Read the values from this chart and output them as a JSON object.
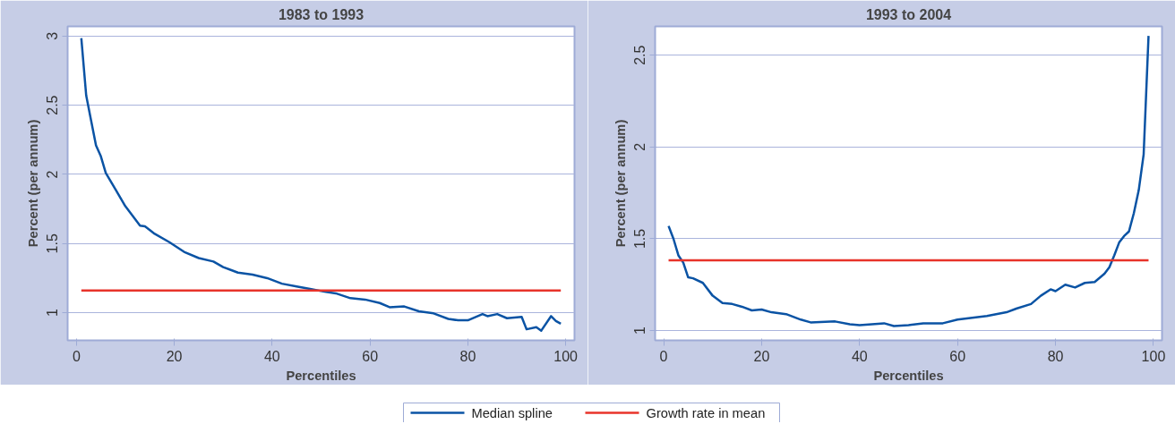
{
  "chart_data": [
    {
      "type": "line",
      "title": "1983 to 1993",
      "xlabel": "Percentiles",
      "ylabel": "Percent (per annum)",
      "xlim": [
        -1.8,
        101.8
      ],
      "ylim": [
        0.8,
        3.07
      ],
      "xticks": [
        0,
        20,
        40,
        60,
        80,
        100
      ],
      "yticks": [
        1,
        1.5,
        2,
        2.5,
        3
      ],
      "grid": "y",
      "legend": "bottom",
      "line_style": "solid",
      "marker": "none",
      "series": [
        {
          "name": "Median spline",
          "color": "#0a53a4",
          "x": [
            1,
            2,
            3,
            4,
            5,
            6,
            8,
            10,
            13,
            14,
            16,
            19,
            22,
            25,
            28,
            30,
            33,
            36,
            39,
            42,
            45,
            48,
            51,
            53,
            56,
            59,
            62,
            64,
            67,
            70,
            73,
            76,
            78,
            80,
            83,
            84,
            86,
            88,
            91,
            92,
            94,
            95,
            97,
            98,
            99
          ],
          "values": [
            2.985,
            2.57,
            2.39,
            2.21,
            2.13,
            2.01,
            1.89,
            1.77,
            1.63,
            1.625,
            1.57,
            1.51,
            1.44,
            1.395,
            1.37,
            1.33,
            1.29,
            1.275,
            1.25,
            1.21,
            1.19,
            1.17,
            1.15,
            1.14,
            1.105,
            1.095,
            1.07,
            1.04,
            1.045,
            1.01,
            0.995,
            0.955,
            0.945,
            0.945,
            0.99,
            0.975,
            0.99,
            0.96,
            0.97,
            0.88,
            0.895,
            0.87,
            0.975,
            0.94,
            0.92
          ]
        },
        {
          "name": "Growth rate in mean",
          "color": "#e8332a",
          "x": [
            1,
            99
          ],
          "values": [
            1.16,
            1.16
          ]
        }
      ]
    },
    {
      "type": "line",
      "title": "1993 to 2004",
      "xlabel": "Percentiles",
      "ylabel": "Percent (per annum)",
      "xlim": [
        -1.75,
        101.75
      ],
      "ylim": [
        0.947,
        2.657
      ],
      "xticks": [
        0,
        20,
        40,
        60,
        80,
        100
      ],
      "yticks": [
        1,
        1.5,
        2,
        2.5
      ],
      "grid": "y",
      "legend": "bottom",
      "line_style": "solid",
      "marker": "none",
      "series": [
        {
          "name": "Median spline",
          "color": "#0a53a4",
          "x": [
            1,
            2,
            3,
            4,
            5,
            6,
            8,
            10,
            12,
            14,
            16,
            18,
            20,
            22,
            25,
            28,
            30,
            35,
            38,
            40,
            45,
            47,
            50,
            53,
            57,
            60,
            63,
            66,
            70,
            72,
            75,
            77,
            79,
            80,
            82,
            84,
            86,
            88,
            90,
            91,
            92,
            93,
            94,
            95,
            96,
            97,
            98,
            99
          ],
          "values": [
            1.57,
            1.5,
            1.41,
            1.37,
            1.29,
            1.285,
            1.26,
            1.19,
            1.15,
            1.145,
            1.13,
            1.11,
            1.115,
            1.1,
            1.09,
            1.06,
            1.045,
            1.05,
            1.035,
            1.03,
            1.04,
            1.025,
            1.03,
            1.04,
            1.04,
            1.06,
            1.07,
            1.08,
            1.1,
            1.12,
            1.145,
            1.19,
            1.225,
            1.215,
            1.25,
            1.235,
            1.26,
            1.265,
            1.31,
            1.345,
            1.41,
            1.48,
            1.515,
            1.54,
            1.64,
            1.765,
            1.96,
            2.605
          ]
        },
        {
          "name": "Growth rate in mean",
          "color": "#e8332a",
          "x": [
            1,
            99
          ],
          "values": [
            1.383,
            1.383
          ]
        }
      ]
    }
  ]
}
